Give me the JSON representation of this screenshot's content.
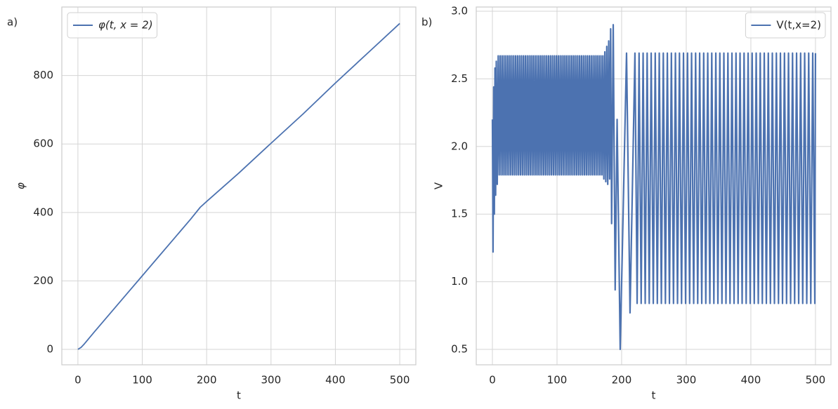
{
  "chart_data": [
    {
      "type": "line",
      "panel_label": "a)",
      "x_label": "t",
      "y_label": "φ",
      "x": [
        0,
        5,
        10,
        25,
        50,
        75,
        100,
        125,
        150,
        175,
        190,
        200,
        250,
        300,
        350,
        400,
        450,
        500
      ],
      "series": [
        {
          "name": "φ(t, x = 2)",
          "color": "#4c72b0",
          "values": [
            0,
            6,
            16,
            50,
            105,
            160,
            215,
            270,
            325,
            380,
            415,
            432,
            515,
            602,
            688,
            778,
            865,
            952
          ]
        }
      ],
      "xlim": [
        -25,
        525
      ],
      "ylim": [
        -45,
        1000
      ],
      "xticks": [
        0,
        100,
        200,
        300,
        400,
        500
      ],
      "yticks": [
        0,
        200,
        400,
        600,
        800
      ],
      "grid": true,
      "legend": "upper left"
    },
    {
      "type": "line",
      "panel_label": "b)",
      "x_label": "t",
      "y_label": "V",
      "x": [
        0,
        1,
        2,
        3,
        4,
        5,
        6,
        7.5,
        9,
        10.5,
        12,
        13.5,
        15,
        16.5,
        18,
        19.5,
        21,
        22.5,
        24,
        25.5,
        27,
        28.5,
        30,
        31.5,
        33,
        34.5,
        36,
        37.5,
        39,
        40.5,
        42,
        43.5,
        45,
        46.5,
        48,
        49.5,
        51,
        52.5,
        54,
        55.5,
        57,
        58.5,
        60,
        61.5,
        63,
        64.5,
        66,
        67.5,
        69,
        70.5,
        72,
        73.5,
        75,
        76.5,
        78,
        79.5,
        81,
        82.5,
        84,
        85.5,
        87,
        88.5,
        90,
        91.5,
        93,
        94.5,
        96,
        97.5,
        99,
        100.5,
        102,
        103.5,
        105,
        106.5,
        108,
        109.5,
        111,
        112.5,
        114,
        115.5,
        117,
        118.5,
        120,
        121.5,
        123,
        124.5,
        126,
        127.5,
        129,
        130.5,
        132,
        133.5,
        135,
        136.5,
        138,
        139.5,
        141,
        142.5,
        144,
        145.5,
        147,
        148.5,
        150,
        151.5,
        153,
        154.5,
        156,
        157.5,
        159,
        160.5,
        162,
        163.5,
        165,
        166.5,
        168,
        169.5,
        171,
        172.5,
        174,
        175.5,
        177,
        178.5,
        180,
        181.5,
        183,
        184.5,
        187,
        190,
        193,
        197.8,
        207.6,
        213,
        220.6,
        224,
        227,
        230.25,
        233.25,
        236.5,
        239.5,
        242.75,
        245.75,
        249,
        252,
        255.25,
        258.25,
        261.5,
        264.5,
        267.75,
        270.75,
        274,
        277,
        280.25,
        283.25,
        286.5,
        289.5,
        292.75,
        295.75,
        299,
        302,
        305.25,
        308.25,
        311.5,
        314.5,
        317.75,
        320.75,
        324,
        327,
        330.25,
        333.25,
        336.5,
        339.5,
        342.75,
        345.75,
        349,
        352,
        355.25,
        358.25,
        361.5,
        364.5,
        367.75,
        370.75,
        374,
        377,
        380.25,
        383.25,
        386.5,
        389.5,
        392.75,
        395.75,
        399,
        402,
        405.25,
        408.25,
        411.5,
        414.5,
        417.75,
        420.75,
        424,
        427,
        430.25,
        433.25,
        436.5,
        439.5,
        442.75,
        445.75,
        449,
        452,
        455.25,
        458.25,
        461.5,
        464.5,
        467.75,
        470.75,
        474,
        477,
        480.25,
        483.25,
        486.5,
        489.5,
        492.75,
        495.75,
        499,
        500
      ],
      "series": [
        {
          "name": "V(t,x=2)",
          "color": "#4c72b0",
          "values": [
            2.2,
            1.22,
            2.44,
            1.5,
            2.58,
            1.64,
            2.63,
            1.72,
            2.67,
            1.79,
            2.67,
            1.79,
            2.67,
            1.79,
            2.67,
            1.79,
            2.67,
            1.79,
            2.67,
            1.79,
            2.67,
            1.79,
            2.67,
            1.79,
            2.67,
            1.79,
            2.67,
            1.79,
            2.67,
            1.79,
            2.67,
            1.79,
            2.67,
            1.79,
            2.67,
            1.79,
            2.67,
            1.79,
            2.67,
            1.79,
            2.67,
            1.79,
            2.67,
            1.79,
            2.67,
            1.79,
            2.67,
            1.79,
            2.67,
            1.79,
            2.67,
            1.79,
            2.67,
            1.79,
            2.67,
            1.79,
            2.67,
            1.79,
            2.67,
            1.79,
            2.67,
            1.79,
            2.67,
            1.79,
            2.67,
            1.79,
            2.67,
            1.79,
            2.67,
            1.79,
            2.67,
            1.79,
            2.67,
            1.79,
            2.67,
            1.79,
            2.67,
            1.79,
            2.67,
            1.79,
            2.67,
            1.79,
            2.67,
            1.79,
            2.67,
            1.79,
            2.67,
            1.79,
            2.67,
            1.79,
            2.67,
            1.79,
            2.67,
            1.79,
            2.67,
            1.79,
            2.67,
            1.79,
            2.67,
            1.79,
            2.67,
            1.79,
            2.67,
            1.79,
            2.67,
            1.79,
            2.67,
            1.79,
            2.67,
            1.79,
            2.67,
            1.79,
            2.67,
            1.79,
            2.67,
            1.79,
            2.67,
            1.76,
            2.7,
            1.74,
            2.74,
            1.72,
            2.78,
            1.76,
            2.87,
            1.43,
            2.9,
            0.94,
            2.2,
            0.5,
            2.69,
            0.77,
            2.69,
            0.84,
            2.69,
            0.84,
            2.69,
            0.84,
            2.69,
            0.84,
            2.69,
            0.84,
            2.69,
            0.84,
            2.69,
            0.84,
            2.69,
            0.84,
            2.69,
            0.84,
            2.69,
            0.84,
            2.69,
            0.84,
            2.69,
            0.84,
            2.69,
            0.84,
            2.69,
            0.84,
            2.69,
            0.84,
            2.69,
            0.84,
            2.69,
            0.84,
            2.69,
            0.84,
            2.69,
            0.84,
            2.69,
            0.84,
            2.69,
            0.84,
            2.69,
            0.84,
            2.69,
            0.84,
            2.69,
            0.84,
            2.69,
            0.84,
            2.69,
            0.84,
            2.69,
            0.84,
            2.69,
            0.84,
            2.69,
            0.84,
            2.69,
            0.84,
            2.69,
            0.84,
            2.69,
            0.84,
            2.69,
            0.84,
            2.69,
            0.84,
            2.69,
            0.84,
            2.69,
            0.84,
            2.69,
            0.84,
            2.69,
            0.84,
            2.69,
            0.84,
            2.69,
            0.84,
            2.69,
            0.84,
            2.69,
            0.84,
            2.69,
            0.84,
            2.69,
            0.84,
            2.69,
            0.84,
            2.69
          ]
        }
      ],
      "xlim": [
        -25,
        524
      ],
      "ylim": [
        0.386,
        3.031
      ],
      "xticks": [
        0,
        100,
        200,
        300,
        400,
        500
      ],
      "yticks": [
        0.5,
        {
          "value": 1,
          "label": "1.0"
        },
        1.5,
        {
          "value": 2,
          "label": "2.0"
        },
        2.5,
        {
          "value": 3,
          "label": "3.0"
        }
      ],
      "grid": true,
      "legend": "upper right"
    }
  ]
}
